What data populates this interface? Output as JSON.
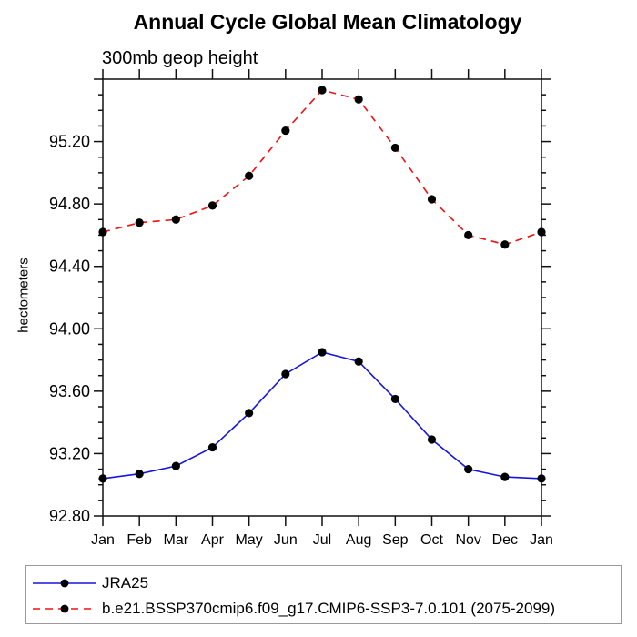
{
  "title": "Annual Cycle Global Mean Climatology",
  "chart_data": {
    "type": "line",
    "title": "Annual Cycle Global Mean Climatology",
    "subtitle": "300mb geop height",
    "ylabel": "hectometers",
    "xlabel": "",
    "categories": [
      "Jan",
      "Feb",
      "Mar",
      "Apr",
      "May",
      "Jun",
      "Jul",
      "Aug",
      "Sep",
      "Oct",
      "Nov",
      "Dec",
      "Jan"
    ],
    "series": [
      {
        "name": "JRA25",
        "color": "#1515dd",
        "line_style": "solid",
        "marker": "filled-circle",
        "marker_color": "#000000",
        "values": [
          93.04,
          93.07,
          93.12,
          93.24,
          93.46,
          93.71,
          93.85,
          93.79,
          93.55,
          93.29,
          93.1,
          93.05,
          93.04
        ]
      },
      {
        "name": "b.e21.BSSP370cmip6.f09_g17.CMIP6-SSP3-7.0.101 (2075-2099)",
        "color": "#f21010",
        "line_style": "dashed",
        "marker": "filled-circle",
        "marker_color": "#000000",
        "values": [
          94.62,
          94.68,
          94.7,
          94.79,
          94.98,
          95.27,
          95.53,
          95.47,
          95.16,
          94.83,
          94.6,
          94.54,
          94.62
        ]
      }
    ],
    "ylim": [
      92.8,
      95.6
    ],
    "y_major_step": 0.4,
    "y_minor_step": 0.1,
    "y_tick_labels": [
      "92.80",
      "93.20",
      "93.60",
      "94.00",
      "94.40",
      "94.80",
      "95.20"
    ],
    "grid": false,
    "tick_style": "outward-all-sides",
    "legend_position": "bottom-left-box"
  },
  "legend": {
    "items": [
      {
        "label": "JRA25"
      },
      {
        "label": "b.e21.BSSP370cmip6.f09_g17.CMIP6-SSP3-7.0.101 (2075-2099)"
      }
    ]
  }
}
